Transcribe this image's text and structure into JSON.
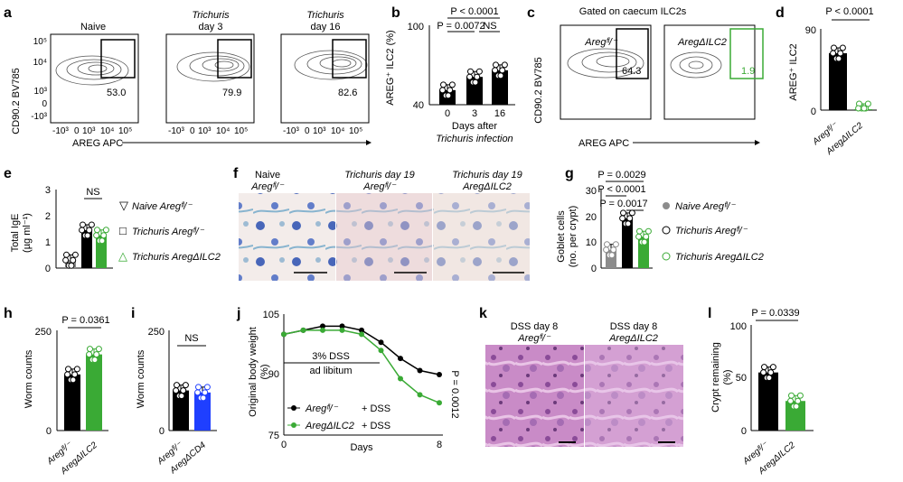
{
  "panel_letters": [
    "a",
    "b",
    "c",
    "d",
    "e",
    "f",
    "g",
    "h",
    "i",
    "j",
    "k",
    "l"
  ],
  "a": {
    "ylabel": "CD90.2 BV785",
    "xlabel": "AREG APC",
    "titles": [
      [
        "Naive"
      ],
      [
        "Trichuris",
        "day 3"
      ],
      [
        "Trichuris",
        "day 16"
      ]
    ],
    "gate_values": [
      "53.0",
      "79.9",
      "82.6"
    ],
    "yticks": [
      "10⁵",
      "10⁴",
      "10³",
      "0",
      "-10³"
    ],
    "xticks": [
      "-10³",
      "0",
      "10³",
      "10⁴",
      "10⁵"
    ]
  },
  "b": {
    "ylabel": "AREG⁺ ILC2 (%)",
    "xlabel": [
      "Days after",
      "Trichuris infection"
    ],
    "yticks": [
      "100",
      "40"
    ],
    "xticks": [
      "0",
      "3",
      "16"
    ],
    "stats": [
      "P < 0.0001",
      "P = 0.0072",
      "NS"
    ]
  },
  "c": {
    "header": "Gated on caecum ILC2s",
    "ylabel": "CD90.2 BV785",
    "xlabel": "AREG APC",
    "titles": [
      "Aregᶠˡ/⁻",
      "AregΔILC2"
    ],
    "gate_values": [
      "64.3",
      "1.9"
    ]
  },
  "d": {
    "ylabel": "AREG⁺ ILC2",
    "stat": "P < 0.0001",
    "yticks": [
      "90",
      "0"
    ],
    "xlabels": [
      "Aregᶠˡ/⁻",
      "AregΔILC2"
    ]
  },
  "e": {
    "ylabel": [
      "Total IgE",
      "(µg ml⁻¹)"
    ],
    "yticks": [
      "3",
      "2",
      "1",
      "0"
    ],
    "stat": "NS",
    "legend": [
      "Naive Aregᶠˡ/⁻",
      "Trichuris Aregᶠˡ/⁻",
      "Trichuris AregΔILC2"
    ]
  },
  "f": {
    "titles": [
      [
        "Naive",
        "Aregᶠˡ/⁻"
      ],
      [
        "Trichuris day 19",
        "Aregᶠˡ/⁻"
      ],
      [
        "Trichuris day 19",
        "AregΔILC2"
      ]
    ]
  },
  "g": {
    "ylabel": [
      "Goblet cells",
      "(no. per crypt)"
    ],
    "yticks": [
      "30",
      "20",
      "10",
      "0"
    ],
    "stats": [
      "P = 0.0029",
      "P < 0.0001",
      "P = 0.0017"
    ],
    "legend": [
      "Naive Aregᶠˡ/⁻",
      "Trichuris Aregᶠˡ/⁻",
      "Trichuris AregΔILC2"
    ]
  },
  "h": {
    "ylabel": "Worm counts",
    "yticks": [
      "250",
      "0"
    ],
    "stat": "P = 0.0361",
    "xlabels": [
      "Aregᶠˡ/⁻",
      "AregΔILC2"
    ]
  },
  "i": {
    "ylabel": "Worm counts",
    "yticks": [
      "250",
      "0"
    ],
    "stat": "NS",
    "xlabels": [
      "Aregᶠˡ/⁻",
      "AregΔCD4"
    ]
  },
  "j": {
    "ylabel": [
      "Original body weight",
      "(%)"
    ],
    "yticks": [
      "105",
      "90",
      "75"
    ],
    "xticks": [
      "0",
      "8"
    ],
    "xlabel": "Days",
    "box": [
      "3% DSS",
      "ad libitum"
    ],
    "stat": "P = 0.0012",
    "legend": [
      "Aregᶠˡ/⁻",
      "AregΔILC2"
    ],
    "legend_suffix": "+ DSS"
  },
  "k": {
    "titles": [
      [
        "DSS day 8",
        "Aregᶠˡ/⁻"
      ],
      [
        "DSS day 8",
        "AregΔILC2"
      ]
    ]
  },
  "l": {
    "ylabel": [
      "Crypt remaining",
      "(%)"
    ],
    "yticks": [
      "100",
      "50",
      "0"
    ],
    "stat": "P = 0.0339",
    "xlabels": [
      "Aregᶠˡ/⁻",
      "AregΔILC2"
    ]
  },
  "colors": {
    "black": "#000000",
    "green": "#3aaa35",
    "grey": "#8c8c8c",
    "blue": "#1f3fff"
  },
  "chart_data": [
    {
      "type": "bar",
      "panel": "b",
      "categories": [
        "0",
        "3",
        "16"
      ],
      "values": [
        51,
        61,
        66
      ],
      "ylim": [
        40,
        100
      ],
      "ylabel": "AREG+ ILC2 (%)",
      "xlabel": "Days after Trichuris infection"
    },
    {
      "type": "bar",
      "panel": "d",
      "categories": [
        "Areg fl/-",
        "Areg dILC2"
      ],
      "values": [
        63,
        1
      ],
      "ylim": [
        0,
        90
      ],
      "ylabel": "AREG+ ILC2"
    },
    {
      "type": "bar",
      "panel": "e",
      "categories": [
        "Naive Areg fl/-",
        "Trichuris Areg fl/-",
        "Trichuris Areg dILC2"
      ],
      "values": [
        0.3,
        1.45,
        1.25
      ],
      "ylim": [
        0,
        3
      ],
      "ylabel": "Total IgE (ug/ml)"
    },
    {
      "type": "bar",
      "panel": "g",
      "categories": [
        "Naive Areg fl/-",
        "Trichuris Areg fl/-",
        "Trichuris Areg dILC2"
      ],
      "values": [
        7,
        19,
        12
      ],
      "ylim": [
        0,
        30
      ],
      "ylabel": "Goblet cells (no. per crypt)"
    },
    {
      "type": "bar",
      "panel": "h",
      "categories": [
        "Areg fl/-",
        "Areg dILC2"
      ],
      "values": [
        140,
        190
      ],
      "ylim": [
        0,
        250
      ],
      "ylabel": "Worm counts"
    },
    {
      "type": "bar",
      "panel": "i",
      "categories": [
        "Areg fl/-",
        "Areg dCD4"
      ],
      "values": [
        100,
        95
      ],
      "ylim": [
        0,
        250
      ],
      "ylabel": "Worm counts"
    },
    {
      "type": "line",
      "panel": "j",
      "x": [
        0,
        1,
        2,
        3,
        4,
        5,
        6,
        7,
        8
      ],
      "series": [
        {
          "name": "Areg fl/- + DSS",
          "values": [
            100,
            101,
            102,
            102,
            101,
            98,
            94,
            91,
            90
          ]
        },
        {
          "name": "Areg dILC2 + DSS",
          "values": [
            100,
            101,
            101,
            101,
            100,
            96,
            89,
            85,
            83
          ]
        }
      ],
      "ylim": [
        75,
        105
      ],
      "xlabel": "Days",
      "ylabel": "Original body weight (%)"
    },
    {
      "type": "bar",
      "panel": "l",
      "categories": [
        "Areg fl/-",
        "Areg dILC2"
      ],
      "values": [
        55,
        28
      ],
      "ylim": [
        0,
        100
      ],
      "ylabel": "Crypt remaining (%)"
    }
  ]
}
